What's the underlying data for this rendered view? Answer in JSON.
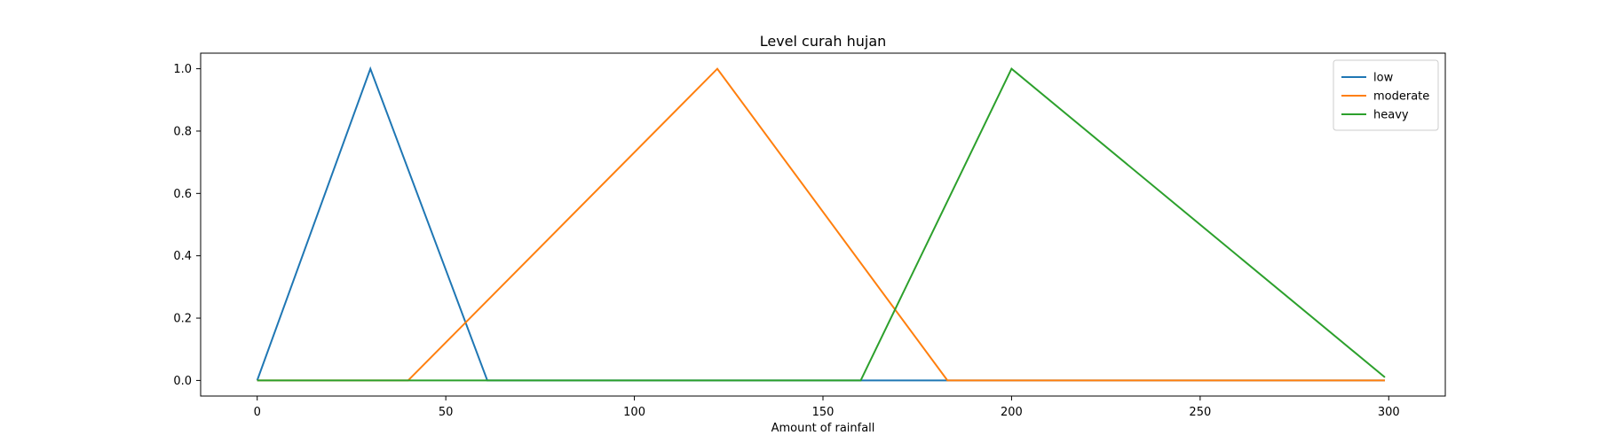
{
  "chart_data": {
    "type": "line",
    "title": "Level curah hujan",
    "xlabel": "Amount of rainfall",
    "ylabel": "",
    "xlim": [
      -15,
      315
    ],
    "ylim": [
      -0.05,
      1.05
    ],
    "xticks": [
      0,
      50,
      100,
      150,
      200,
      250,
      300
    ],
    "xtick_labels": [
      "0",
      "50",
      "100",
      "150",
      "200",
      "250",
      "300"
    ],
    "yticks": [
      0.0,
      0.2,
      0.4,
      0.6,
      0.8,
      1.0
    ],
    "ytick_labels": [
      "0.0",
      "0.2",
      "0.4",
      "0.6",
      "0.8",
      "1.0"
    ],
    "grid": false,
    "legend_position": "top-right",
    "series": [
      {
        "name": "low",
        "color": "#1f77b4",
        "x": [
          0,
          30,
          61,
          299
        ],
        "y": [
          0,
          1,
          0,
          0
        ]
      },
      {
        "name": "moderate",
        "color": "#ff7f0e",
        "x": [
          0,
          40,
          122,
          183,
          299
        ],
        "y": [
          0,
          0,
          1,
          0,
          0
        ]
      },
      {
        "name": "heavy",
        "color": "#2ca02c",
        "x": [
          0,
          160,
          200,
          299
        ],
        "y": [
          0,
          0,
          1,
          0.01
        ]
      }
    ]
  }
}
